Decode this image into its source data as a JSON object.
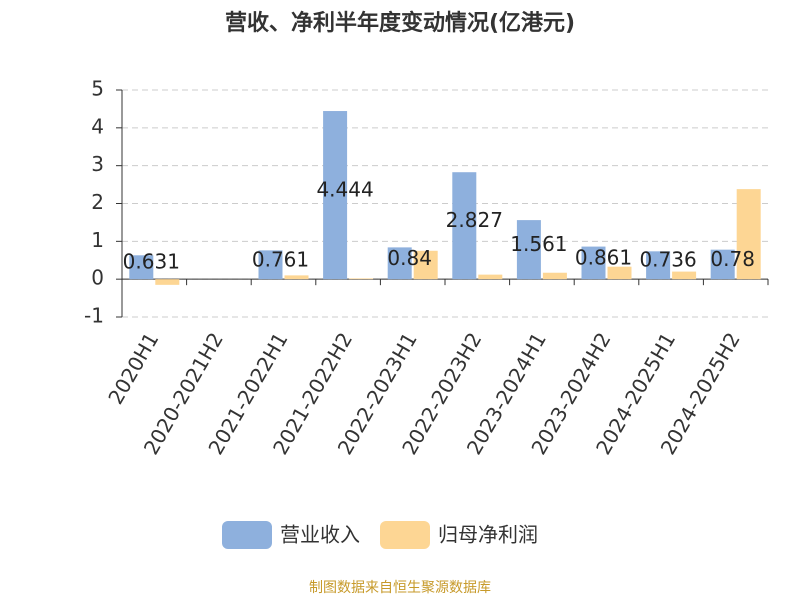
{
  "chart_data": {
    "type": "bar",
    "title": "营收、净利半年度变动情况(亿港元)",
    "categories": [
      "2020H1",
      "2020-2021H2",
      "2021-2022H1",
      "2021-2022H2",
      "2022-2023H1",
      "2022-2023H2",
      "2023-2024H1",
      "2023-2024H2",
      "2024-2025H1",
      "2024-2025H2"
    ],
    "series": [
      {
        "name": "营业收入",
        "color": "#8eb0dd",
        "values": [
          0.631,
          null,
          0.761,
          4.444,
          0.84,
          2.827,
          1.561,
          0.861,
          0.736,
          0.78
        ]
      },
      {
        "name": "归母净利润",
        "color": "#fdd694",
        "values": [
          -0.15,
          null,
          0.1,
          0.02,
          0.75,
          0.12,
          0.17,
          0.33,
          0.2,
          2.38
        ]
      }
    ],
    "ylim": [
      -1,
      5
    ],
    "yticks": [
      -1,
      0,
      1,
      2,
      3,
      4,
      5
    ],
    "grid": true,
    "source": "制图数据来自恒生聚源数据库"
  }
}
